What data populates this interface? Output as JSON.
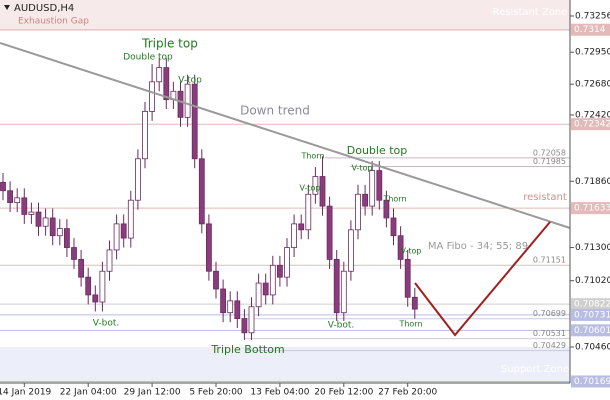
{
  "chart_data": {
    "type": "candlestick",
    "title": "AUDUSD,H4",
    "subtitle": "Exhaustion Gap",
    "categories": [
      null,
      null,
      null,
      "14 Jan 2019",
      null,
      null,
      null,
      null,
      null,
      null,
      null,
      null,
      "22 Jan 04:00",
      null,
      null,
      null,
      null,
      null,
      null,
      null,
      null,
      "29 Jan 12:00",
      null,
      null,
      null,
      null,
      null,
      null,
      null,
      null,
      "5 Feb 20:00",
      null,
      null,
      null,
      null,
      null,
      null,
      null,
      null,
      "13 Feb 04:00",
      null,
      null,
      null,
      null,
      null,
      null,
      null,
      null,
      "20 Feb 12:00",
      null,
      null,
      null,
      null,
      null,
      null,
      null,
      null,
      "27 Feb 20:00",
      null
    ],
    "open": [
      0.7185,
      0.7178,
      0.7168,
      0.7172,
      0.7158,
      0.716,
      0.7148,
      0.7155,
      0.714,
      0.7146,
      0.713,
      0.712,
      0.7105,
      0.709,
      0.7084,
      0.711,
      0.7128,
      0.715,
      0.7138,
      0.717,
      0.7205,
      0.7245,
      0.727,
      0.7282,
      0.7255,
      0.7262,
      0.724,
      0.7268,
      0.7205,
      0.715,
      0.711,
      0.7095,
      0.7075,
      0.7085,
      0.707,
      0.7058,
      0.708,
      0.71,
      0.709,
      0.7115,
      0.7105,
      0.713,
      0.715,
      0.7145,
      0.7175,
      0.719,
      0.7165,
      0.712,
      0.7075,
      0.711,
      0.7145,
      0.7175,
      0.7165,
      0.7195,
      0.717,
      0.7155,
      0.714,
      0.712,
      0.7088
    ],
    "high": [
      0.7193,
      0.7186,
      0.718,
      0.718,
      0.7168,
      0.7168,
      0.7163,
      0.7163,
      0.7154,
      0.7154,
      0.7138,
      0.7128,
      0.7113,
      0.7098,
      0.7118,
      0.7136,
      0.7158,
      0.7158,
      0.7178,
      0.7213,
      0.7253,
      0.7285,
      0.729,
      0.729,
      0.727,
      0.727,
      0.7276,
      0.7276,
      0.7213,
      0.7158,
      0.7118,
      0.7103,
      0.7093,
      0.7093,
      0.7078,
      0.7088,
      0.7108,
      0.7108,
      0.7123,
      0.7123,
      0.7138,
      0.7158,
      0.7158,
      0.7183,
      0.7198,
      0.7207,
      0.7173,
      0.7128,
      0.7118,
      0.7153,
      0.7183,
      0.7183,
      0.7203,
      0.7203,
      0.7178,
      0.7163,
      0.7148,
      0.7128,
      0.7096
    ],
    "low": [
      0.717,
      0.716,
      0.716,
      0.715,
      0.715,
      0.714,
      0.714,
      0.7132,
      0.7132,
      0.7122,
      0.7112,
      0.7097,
      0.7082,
      0.7076,
      0.7076,
      0.7102,
      0.712,
      0.713,
      0.713,
      0.7162,
      0.7197,
      0.7237,
      0.7262,
      0.7247,
      0.7247,
      0.7232,
      0.7232,
      0.7197,
      0.7142,
      0.7102,
      0.7087,
      0.7067,
      0.7067,
      0.7062,
      0.7052,
      0.7052,
      0.7072,
      0.7082,
      0.7082,
      0.7097,
      0.7097,
      0.7122,
      0.7137,
      0.7137,
      0.7167,
      0.7157,
      0.7112,
      0.7068,
      0.7068,
      0.7102,
      0.7137,
      0.7157,
      0.7157,
      0.7162,
      0.7147,
      0.7132,
      0.7112,
      0.708,
      0.707
    ],
    "close": [
      0.7178,
      0.7168,
      0.7172,
      0.7158,
      0.716,
      0.7148,
      0.7155,
      0.714,
      0.7146,
      0.713,
      0.712,
      0.7105,
      0.709,
      0.7084,
      0.711,
      0.7128,
      0.715,
      0.7138,
      0.717,
      0.7205,
      0.7245,
      0.727,
      0.7282,
      0.7255,
      0.7262,
      0.724,
      0.7268,
      0.7205,
      0.715,
      0.711,
      0.7095,
      0.7075,
      0.7085,
      0.707,
      0.7058,
      0.708,
      0.71,
      0.709,
      0.7115,
      0.7105,
      0.713,
      0.715,
      0.7145,
      0.7175,
      0.719,
      0.7165,
      0.712,
      0.7075,
      0.711,
      0.7145,
      0.7175,
      0.7165,
      0.7195,
      0.717,
      0.7155,
      0.714,
      0.712,
      0.7088,
      0.7078
    ],
    "up_color": "#ffffff",
    "down_color": "#8a3d7c",
    "wick_color": "#6b2a60",
    "ylim": [
      0.70156,
      0.73391
    ],
    "yticks": [
      0.73256,
      {
        "value": 0.7295,
        "label": "0.72950"
      },
      {
        "value": 0.7268,
        "label": "0.72680"
      },
      {
        "value": 0.7242,
        "label": "0.72420"
      },
      {
        "value": 0.7186,
        "label": "0.71860"
      },
      {
        "value": 0.713,
        "label": "0.71300"
      },
      {
        "value": 0.7102,
        "label": "0.71020"
      },
      {
        "value": 0.7046,
        "label": "0.70460"
      }
    ],
    "price_boxes": [
      {
        "value": 0.7314,
        "color": "#e3b9b9"
      },
      {
        "value": 0.72342,
        "color": "#e3b9b9"
      },
      {
        "value": 0.71633,
        "color": "#e3b9b9"
      },
      {
        "value": 0.70822,
        "color": "#cfcfcf"
      },
      {
        "value": 0.70731,
        "color": "#b9bde3"
      },
      {
        "value": 0.70601,
        "color": "#b9bde3"
      },
      {
        "value": 0.70169,
        "color": "#b9bde3"
      }
    ],
    "marked_levels": [
      {
        "value": 0.72058,
        "color": "#c9b8c0"
      },
      {
        "value": 0.71985,
        "color": "#c9b8c0"
      },
      {
        "value": 0.71151,
        "color": "#e3b9b9"
      },
      {
        "value": 0.70699,
        "color": "#c9c9d9"
      },
      {
        "value": 0.70531,
        "color": "#c9c9d9"
      },
      {
        "value": 0.70429,
        "color": "#c9c9d9"
      }
    ],
    "annotations": [
      "Triple top",
      "Double top",
      "V-top",
      "Down trend",
      "Thorn",
      "Double top",
      "V-top",
      "V-top",
      "Thorn",
      "resistant",
      "MA Fibo - 34; 55; 89",
      "V-top",
      "V-bot.",
      "V-bot.",
      "Thorn",
      "Triple Bottom",
      "Resistant Zone",
      "Support Zone"
    ]
  }
}
